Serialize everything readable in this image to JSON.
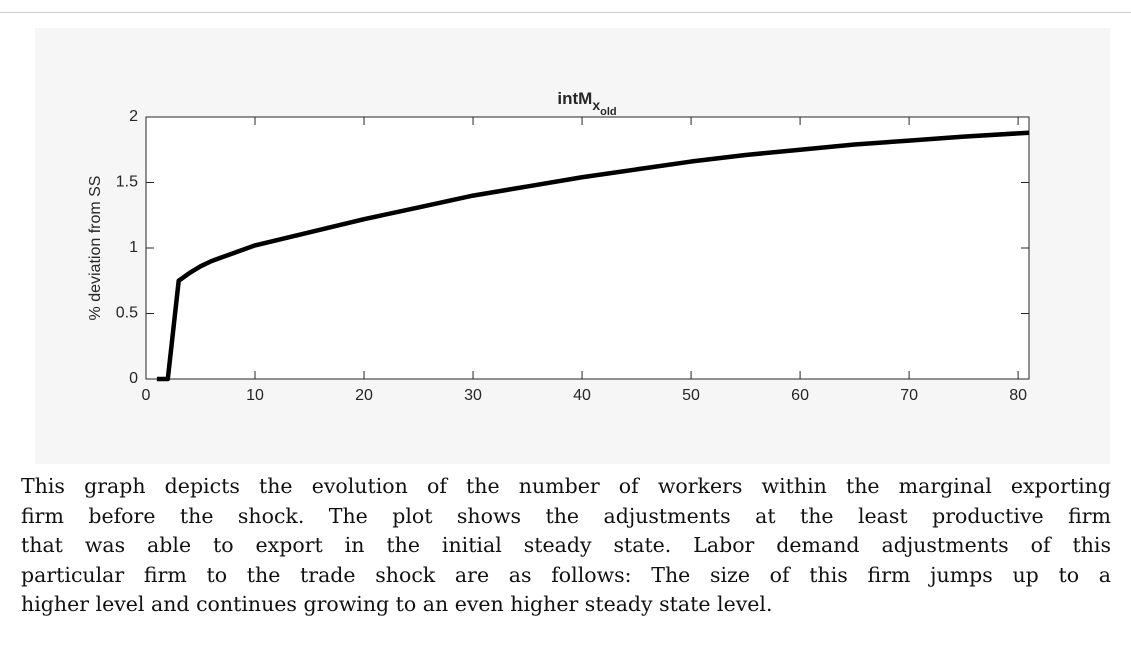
{
  "chart_data": {
    "type": "line",
    "title": "intM",
    "title_subscript": "x",
    "title_sub_subscript": "old",
    "ylabel": "% deviation from SS",
    "x": [
      1,
      2,
      3,
      4,
      5,
      6,
      7,
      8,
      10,
      15,
      20,
      25,
      30,
      35,
      40,
      45,
      50,
      55,
      60,
      65,
      70,
      75,
      81
    ],
    "series": [
      {
        "name": "intMx_old",
        "color": "#000000",
        "values": [
          0,
          0,
          0.75,
          0.81,
          0.86,
          0.9,
          0.93,
          0.96,
          1.02,
          1.12,
          1.22,
          1.31,
          1.4,
          1.47,
          1.54,
          1.6,
          1.66,
          1.71,
          1.75,
          1.79,
          1.82,
          1.85,
          1.88
        ]
      }
    ],
    "xlim": [
      0,
      81
    ],
    "xticks": [
      0,
      10,
      20,
      30,
      40,
      50,
      60,
      70,
      80
    ],
    "ylim": [
      0,
      2
    ],
    "yticks": [
      0,
      0.5,
      1,
      1.5,
      2
    ],
    "grid": false
  },
  "caption": {
    "lines": [
      "This graph depicts the evolution of the number of workers within the marginal exporting",
      "firm before the shock. The plot shows the adjustments at the least productive firm",
      "that was able to export in the initial steady state. Labor demand adjustments of this",
      "particular firm to the trade shock are as follows: The size of this firm jumps up to a",
      "higher level and continues growing to an even higher steady state level."
    ]
  }
}
